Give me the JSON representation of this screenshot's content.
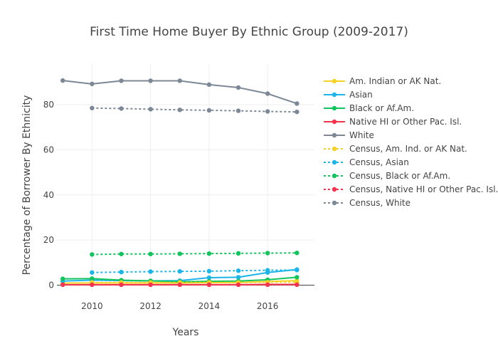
{
  "chart_data": {
    "type": "line",
    "title": "First Time Home Buyer By Ethnic Group (2009-2017)",
    "xlabel": "Years",
    "ylabel": "Percentage of Borrower By Ethnicity",
    "xlim": [
      2008.8,
      2017.6
    ],
    "ylim": [
      -3,
      98
    ],
    "xticks": [
      2010,
      2012,
      2014,
      2016
    ],
    "yticks": [
      0,
      20,
      40,
      60,
      80
    ],
    "grid": true,
    "legend_position": "right",
    "series": [
      {
        "name": "Am. Indian or AK Nat.",
        "color": "#f5d123",
        "dash": "solid",
        "x": [
          2009,
          2010,
          2011,
          2012,
          2013,
          2014,
          2015,
          2016,
          2017
        ],
        "y": [
          0.9,
          1.0,
          1.0,
          1.0,
          1.0,
          1.1,
          1.2,
          1.6,
          2.0
        ]
      },
      {
        "name": "Asian",
        "color": "#1cb5ea",
        "dash": "solid",
        "x": [
          2009,
          2010,
          2011,
          2012,
          2013,
          2014,
          2015,
          2016,
          2017
        ],
        "y": [
          1.8,
          2.2,
          2.0,
          1.9,
          2.0,
          3.3,
          3.5,
          5.6,
          6.9
        ]
      },
      {
        "name": "Black or Af.Am.",
        "color": "#12c45d",
        "dash": "solid",
        "x": [
          2009,
          2010,
          2011,
          2012,
          2013,
          2014,
          2015,
          2016,
          2017
        ],
        "y": [
          2.8,
          2.9,
          2.2,
          1.9,
          1.5,
          1.7,
          1.8,
          2.4,
          3.5
        ]
      },
      {
        "name": "Native HI or Other Pac. Isl.",
        "color": "#f5334d",
        "dash": "solid",
        "x": [
          2009,
          2010,
          2011,
          2012,
          2013,
          2014,
          2015,
          2016,
          2017
        ],
        "y": [
          0.2,
          0.2,
          0.2,
          0.2,
          0.2,
          0.2,
          0.2,
          0.3,
          0.3
        ]
      },
      {
        "name": "White",
        "color": "#7c8895",
        "dash": "solid",
        "x": [
          2009,
          2010,
          2011,
          2012,
          2013,
          2014,
          2015,
          2016,
          2017
        ],
        "y": [
          90.7,
          89.2,
          90.6,
          90.6,
          90.6,
          88.9,
          87.6,
          84.9,
          80.5
        ]
      },
      {
        "name": "Census, Am. Ind. or AK Nat.",
        "color": "#f5d123",
        "dash": "dot",
        "x": [
          2010,
          2011,
          2012,
          2013,
          2014,
          2015,
          2016,
          2017
        ],
        "y": [
          1.2,
          1.2,
          1.2,
          1.2,
          1.2,
          1.2,
          1.3,
          1.3
        ]
      },
      {
        "name": "Census, Asian",
        "color": "#1cb5ea",
        "dash": "dot",
        "x": [
          2010,
          2011,
          2012,
          2013,
          2014,
          2015,
          2016,
          2017
        ],
        "y": [
          5.6,
          5.8,
          6.0,
          6.1,
          6.2,
          6.4,
          6.6,
          6.7
        ]
      },
      {
        "name": "Census, Black or Af.Am.",
        "color": "#12c45d",
        "dash": "dot",
        "x": [
          2010,
          2011,
          2012,
          2013,
          2014,
          2015,
          2016,
          2017
        ],
        "y": [
          13.6,
          13.8,
          13.8,
          13.9,
          14.0,
          14.1,
          14.2,
          14.3
        ]
      },
      {
        "name": "Census, Native HI or Other Pac. Isl.",
        "color": "#f5334d",
        "dash": "dot",
        "x": [
          2010,
          2011,
          2012,
          2013,
          2014,
          2015,
          2016,
          2017
        ],
        "y": [
          0.2,
          0.2,
          0.2,
          0.2,
          0.2,
          0.2,
          0.2,
          0.2
        ]
      },
      {
        "name": "Census, White",
        "color": "#7c8895",
        "dash": "dot",
        "x": [
          2010,
          2011,
          2012,
          2013,
          2014,
          2015,
          2016,
          2017
        ],
        "y": [
          78.5,
          78.3,
          78.0,
          77.7,
          77.5,
          77.3,
          77.0,
          76.8
        ]
      }
    ]
  }
}
